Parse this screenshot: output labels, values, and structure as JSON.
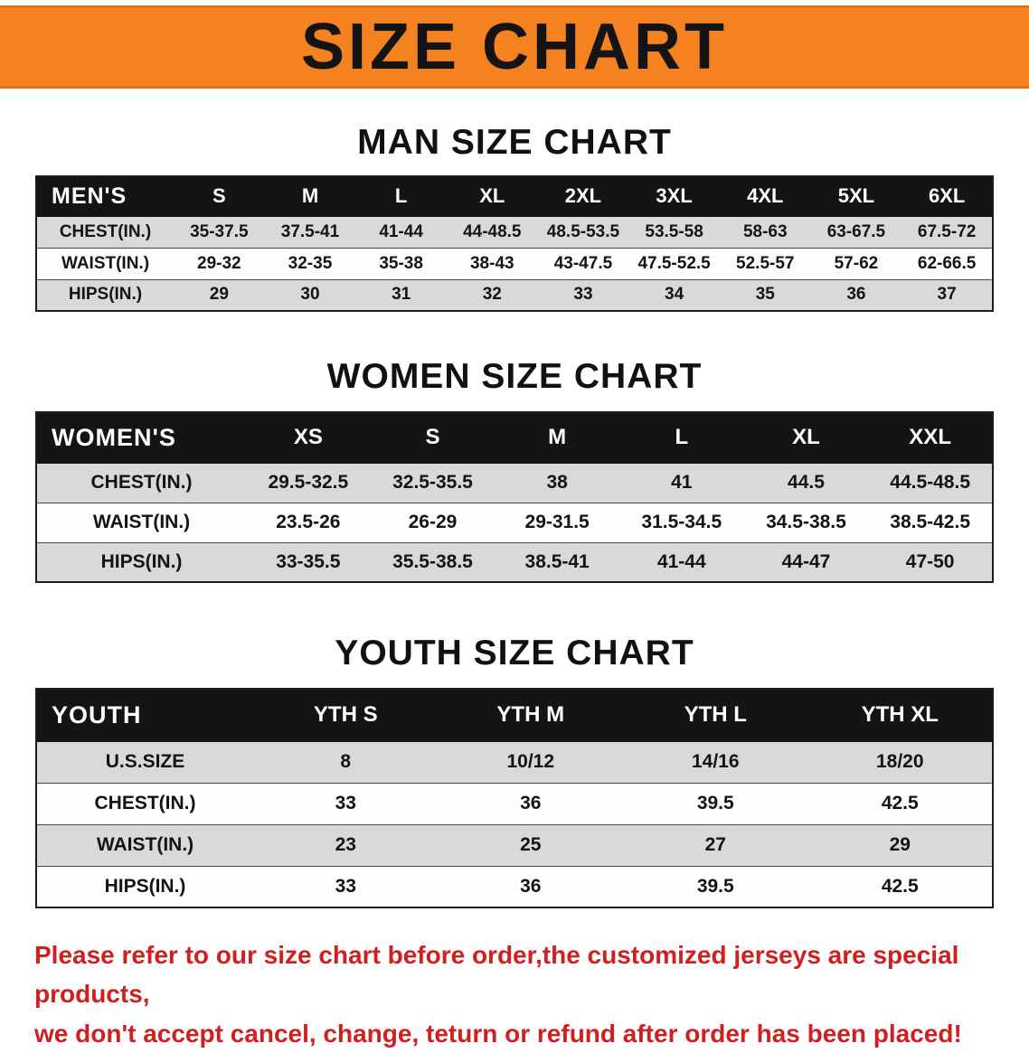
{
  "banner": {
    "title": "SIZE CHART",
    "bg_color": "#f58220",
    "text_color": "#141414"
  },
  "sections": {
    "men": {
      "heading": "MAN SIZE CHART",
      "table": {
        "header": [
          "MEN'S",
          "S",
          "M",
          "L",
          "XL",
          "2XL",
          "3XL",
          "4XL",
          "5XL",
          "6XL"
        ],
        "rows": [
          [
            "CHEST(IN.)",
            "35-37.5",
            "37.5-41",
            "41-44",
            "44-48.5",
            "48.5-53.5",
            "53.5-58",
            "58-63",
            "63-67.5",
            "67.5-72"
          ],
          [
            "WAIST(IN.)",
            "29-32",
            "32-35",
            "35-38",
            "38-43",
            "43-47.5",
            "47.5-52.5",
            "52.5-57",
            "57-62",
            "62-66.5"
          ],
          [
            "HIPS(IN.)",
            "29",
            "30",
            "31",
            "32",
            "33",
            "34",
            "35",
            "36",
            "37"
          ]
        ]
      }
    },
    "women": {
      "heading": "WOMEN SIZE CHART",
      "table": {
        "header": [
          "WOMEN'S",
          "XS",
          "S",
          "M",
          "L",
          "XL",
          "XXL"
        ],
        "rows": [
          [
            "CHEST(IN.)",
            "29.5-32.5",
            "32.5-35.5",
            "38",
            "41",
            "44.5",
            "44.5-48.5"
          ],
          [
            "WAIST(IN.)",
            "23.5-26",
            "26-29",
            "29-31.5",
            "31.5-34.5",
            "34.5-38.5",
            "38.5-42.5"
          ],
          [
            "HIPS(IN.)",
            "33-35.5",
            "35.5-38.5",
            "38.5-41",
            "41-44",
            "44-47",
            "47-50"
          ]
        ]
      }
    },
    "youth": {
      "heading": "YOUTH SIZE CHART",
      "table": {
        "header": [
          "YOUTH",
          "YTH S",
          "YTH M",
          "YTH L",
          "YTH XL"
        ],
        "rows": [
          [
            "U.S.SIZE",
            "8",
            "10/12",
            "14/16",
            "18/20"
          ],
          [
            "CHEST(IN.)",
            "33",
            "36",
            "39.5",
            "42.5"
          ],
          [
            "WAIST(IN.)",
            "23",
            "25",
            "27",
            "29"
          ],
          [
            "HIPS(IN.)",
            "33",
            "36",
            "39.5",
            "42.5"
          ]
        ]
      }
    }
  },
  "disclaimer": {
    "line1": "Please refer to our size chart before order,the customized jerseys are special products,",
    "line2": "we don't accept cancel, change, teturn or refund after order has been placed!",
    "color": "#d01f1f"
  }
}
